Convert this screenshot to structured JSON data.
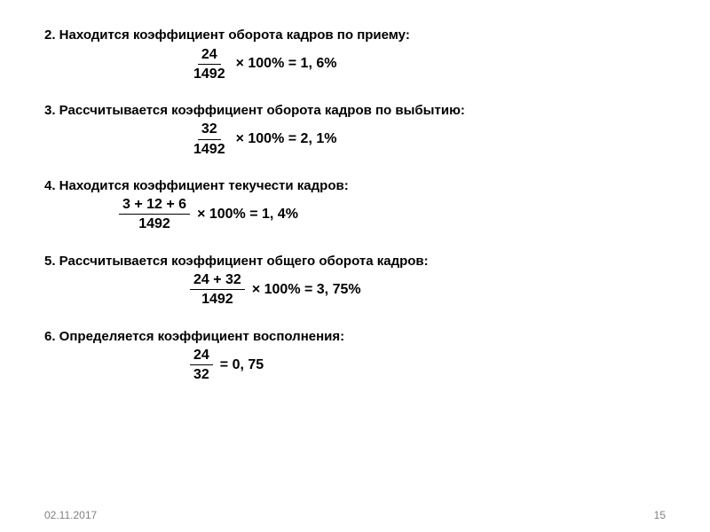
{
  "sections": [
    {
      "heading": "2. Находится коэффициент оборота кадров по приему:",
      "frac_num": "24",
      "frac_den": "1492",
      "tail": "× 100% = 1, 6%"
    },
    {
      "heading": "3. Рассчитывается коэффициент оборота кадров по выбытию:",
      "frac_num": "32",
      "frac_den": "1492",
      "tail": "× 100% = 2, 1%"
    },
    {
      "heading": "4. Находится коэффициент текучести кадров:",
      "frac_num": "3 + 12 + 6",
      "frac_den": "1492",
      "tail": "× 100% = 1, 4%"
    },
    {
      "heading": "5. Рассчитывается коэффициент общего оборота кадров:",
      "frac_num": "24 + 32",
      "frac_den": "1492",
      "tail": "× 100% = 3, 75%"
    },
    {
      "heading": "6. Определяется коэффициент восполнения:",
      "frac_num": "24",
      "frac_den": "32",
      "tail": "= 0, 75"
    }
  ],
  "footer": {
    "date": "02.11.2017",
    "page": "15"
  },
  "style": {
    "background_color": "#ffffff",
    "text_color": "#000000",
    "footer_color": "#808080",
    "heading_fontsize": 15,
    "formula_fontsize": 16,
    "footer_fontsize": 12,
    "font_family": "Arial, sans-serif"
  }
}
